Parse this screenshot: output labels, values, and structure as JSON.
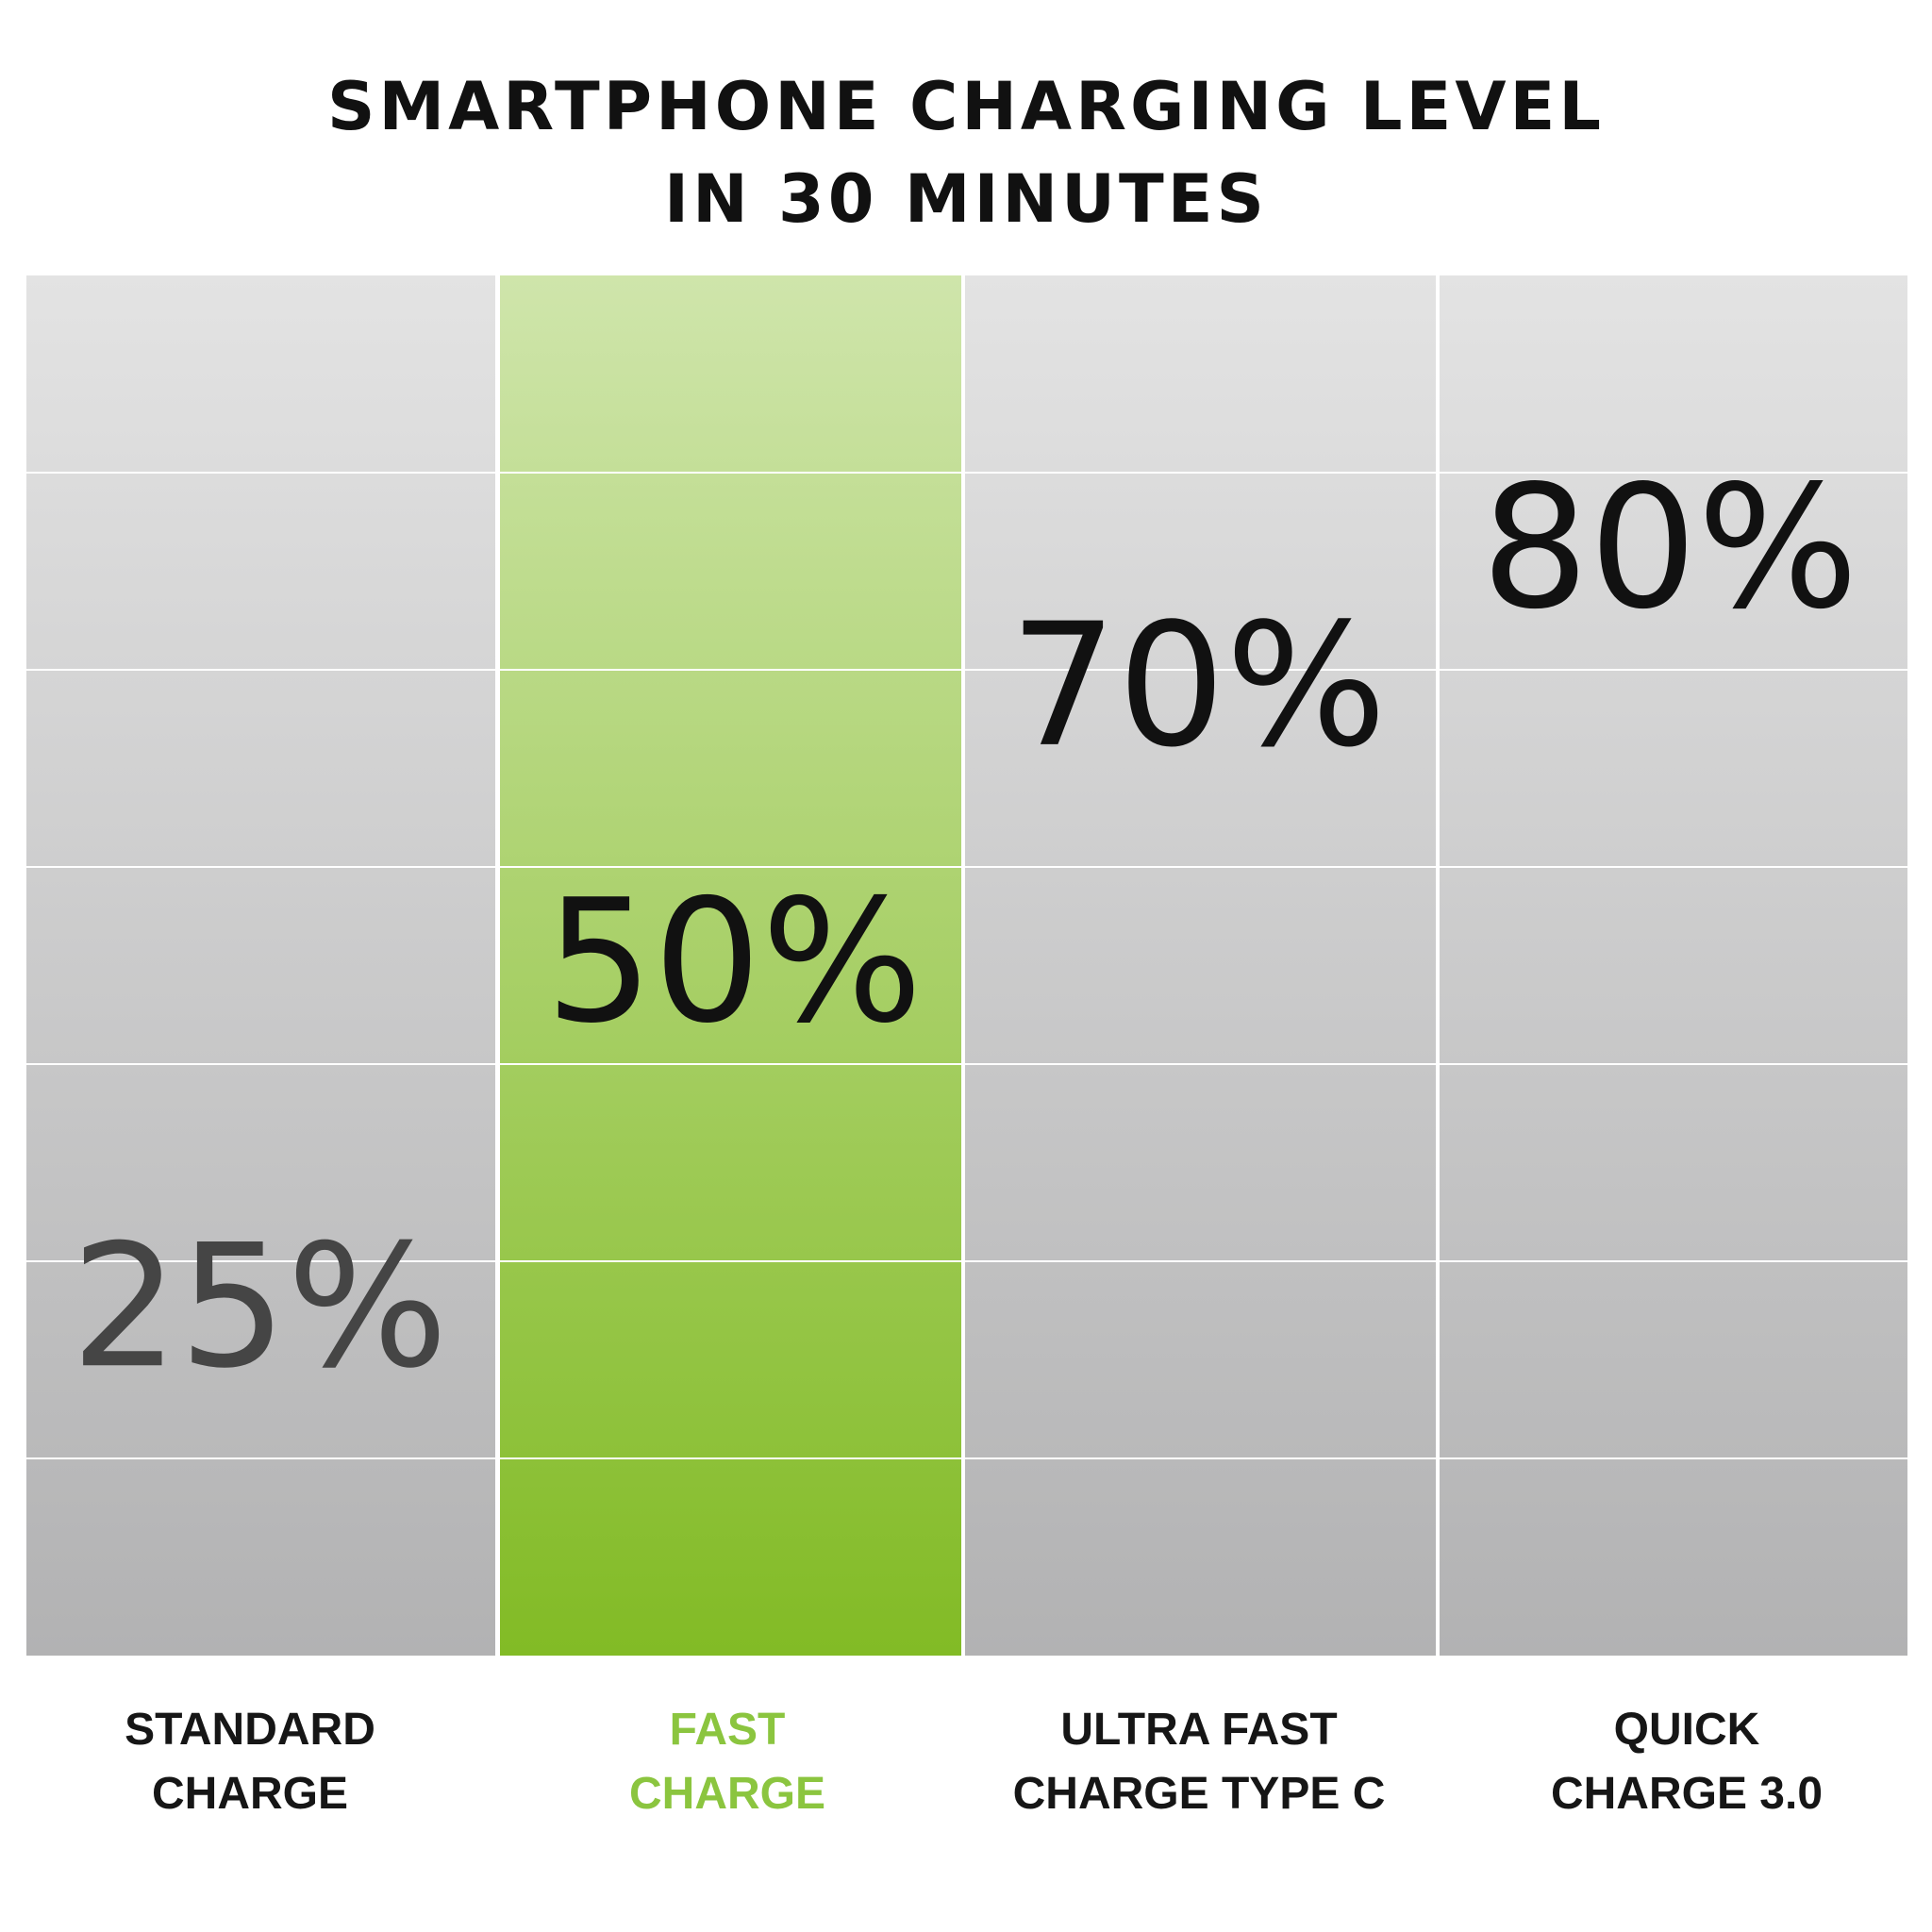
{
  "title_lines": [
    "SMARTPHONE CHARGING LEVEL",
    "IN 30 MINUTES"
  ],
  "colors": {
    "highlight_text": "#8bc53f",
    "highlight_bar_top": "#cfe5ab",
    "highlight_bar_bottom": "#82bb25",
    "gray_top": "#e3e3e3",
    "gray_bottom": "#b2b2b3",
    "grid_lines": "#ffffff",
    "value_text": "#111111",
    "low_value_text": "#454545"
  },
  "chart_data": {
    "type": "bar",
    "title": "SMARTPHONE CHARGING LEVEL IN 30 MINUTES",
    "categories": [
      "STANDARD CHARGE",
      "FAST CHARGE",
      "ULTRA FAST CHARGE TYPE C",
      "QUICK CHARGE 3.0"
    ],
    "category_lines": [
      [
        "STANDARD",
        "CHARGE"
      ],
      [
        "FAST",
        "CHARGE"
      ],
      [
        "ULTRA FAST",
        "CHARGE TYPE C"
      ],
      [
        "QUICK",
        "CHARGE 3.0"
      ]
    ],
    "values": [
      25,
      50,
      70,
      80
    ],
    "value_labels": [
      "25%",
      "50%",
      "70%",
      "80%"
    ],
    "unit": "%",
    "highlighted_category": "FAST CHARGE",
    "ylim": [
      0,
      100
    ],
    "grid_rows": 7,
    "grid": true,
    "legend": "none"
  }
}
